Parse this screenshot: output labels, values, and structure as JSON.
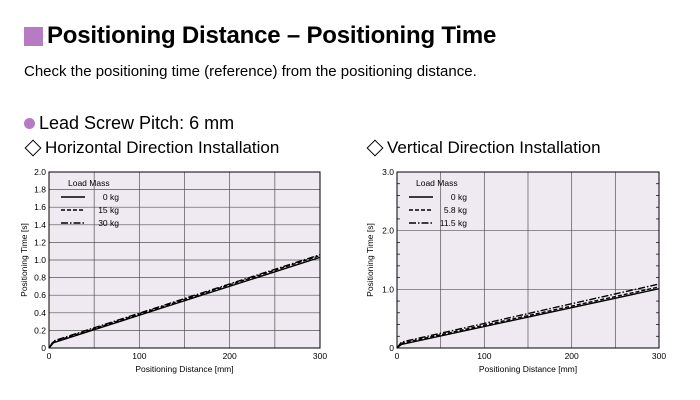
{
  "header": {
    "title": "Positioning Distance – Positioning Time",
    "subtitle": "Check the positioning time (reference) from the positioning distance.",
    "pitch_label": "Lead Screw Pitch: 6 mm",
    "accent_color": "#b77bc3"
  },
  "chart_data": [
    {
      "type": "line",
      "title": "Horizontal Direction Installation",
      "xlabel": "Positioning Distance [mm]",
      "ylabel": "Positioning Time [s]",
      "xlim": [
        0,
        300
      ],
      "ylim": [
        0,
        2.0
      ],
      "x_ticks": [
        "0",
        "100",
        "200",
        "300"
      ],
      "y_ticks": [
        "0",
        "0.2",
        "0.4",
        "0.6",
        "0.8",
        "1.0",
        "1.2",
        "1.4",
        "1.6",
        "1.8",
        "2.0"
      ],
      "legend_title": "Load Mass",
      "grid": true,
      "plot_background": "#efe9f2",
      "series": [
        {
          "name": "0 kg",
          "style": "solid",
          "x": [
            0,
            5,
            300
          ],
          "y": [
            0,
            0.06,
            1.03
          ]
        },
        {
          "name": "15 kg",
          "style": "dashed",
          "x": [
            0,
            5,
            300
          ],
          "y": [
            0,
            0.07,
            1.05
          ]
        },
        {
          "name": "30 kg",
          "style": "dashdot",
          "x": [
            0,
            5,
            300
          ],
          "y": [
            0,
            0.08,
            1.06
          ]
        }
      ]
    },
    {
      "type": "line",
      "title": "Vertical Direction Installation",
      "xlabel": "Positioning Distance [mm]",
      "ylabel": "Positioning Time [s]",
      "xlim": [
        0,
        300
      ],
      "ylim": [
        0,
        3.0
      ],
      "x_ticks": [
        "0",
        "100",
        "200",
        "300"
      ],
      "y_ticks": [
        "0",
        "1.0",
        "2.0",
        "3.0"
      ],
      "legend_title": "Load Mass",
      "grid": true,
      "plot_background": "#efe9f2",
      "series": [
        {
          "name": "0 kg",
          "style": "solid",
          "x": [
            0,
            5,
            300
          ],
          "y": [
            0,
            0.06,
            1.01
          ]
        },
        {
          "name": "5.8 kg",
          "style": "dashed",
          "x": [
            0,
            5,
            300
          ],
          "y": [
            0,
            0.08,
            1.04
          ]
        },
        {
          "name": "11.5 kg",
          "style": "dashdot",
          "x": [
            0,
            5,
            300
          ],
          "y": [
            0,
            0.1,
            1.09
          ]
        }
      ]
    }
  ]
}
